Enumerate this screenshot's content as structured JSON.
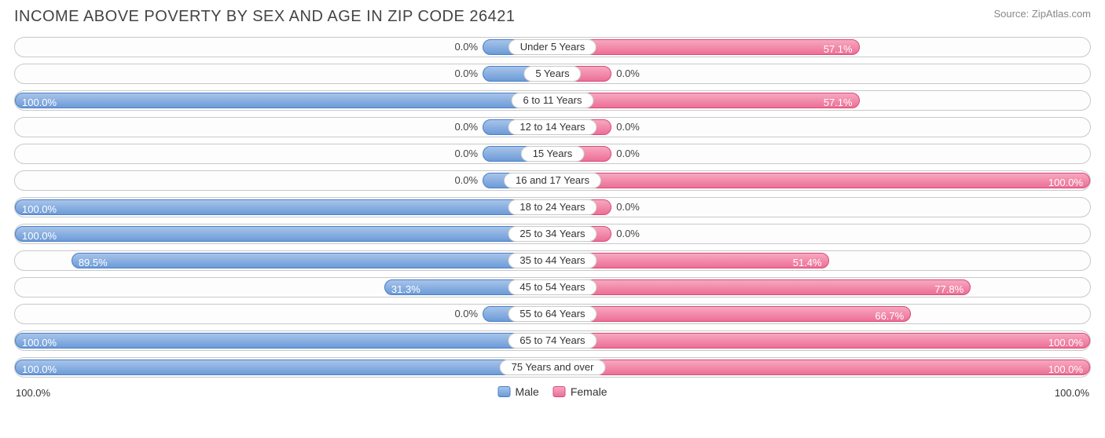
{
  "title": "INCOME ABOVE POVERTY BY SEX AND AGE IN ZIP CODE 26421",
  "source": "Source: ZipAtlas.com",
  "axis": {
    "left": "100.0%",
    "right": "100.0%"
  },
  "legend": {
    "male": "Male",
    "female": "Female"
  },
  "colors": {
    "male_fill_top": "#a7c4ea",
    "male_fill_bottom": "#6d9bd8",
    "male_border": "#4a7fc9",
    "female_fill_top": "#f7a8c0",
    "female_fill_bottom": "#ed6f97",
    "female_border": "#d94a78",
    "row_border": "#c9c9c9",
    "background": "#ffffff"
  },
  "chart": {
    "type": "diverging-bar",
    "male_min_pct": 13.0,
    "female_min_pct": 11.0,
    "label_inside_threshold": 30.0,
    "rows": [
      {
        "label": "Under 5 Years",
        "male": 0.0,
        "male_label": "0.0%",
        "female": 57.1,
        "female_label": "57.1%"
      },
      {
        "label": "5 Years",
        "male": 0.0,
        "male_label": "0.0%",
        "female": 0.0,
        "female_label": "0.0%"
      },
      {
        "label": "6 to 11 Years",
        "male": 100.0,
        "male_label": "100.0%",
        "female": 57.1,
        "female_label": "57.1%"
      },
      {
        "label": "12 to 14 Years",
        "male": 0.0,
        "male_label": "0.0%",
        "female": 0.0,
        "female_label": "0.0%"
      },
      {
        "label": "15 Years",
        "male": 0.0,
        "male_label": "0.0%",
        "female": 0.0,
        "female_label": "0.0%"
      },
      {
        "label": "16 and 17 Years",
        "male": 0.0,
        "male_label": "0.0%",
        "female": 100.0,
        "female_label": "100.0%"
      },
      {
        "label": "18 to 24 Years",
        "male": 100.0,
        "male_label": "100.0%",
        "female": 0.0,
        "female_label": "0.0%"
      },
      {
        "label": "25 to 34 Years",
        "male": 100.0,
        "male_label": "100.0%",
        "female": 0.0,
        "female_label": "0.0%"
      },
      {
        "label": "35 to 44 Years",
        "male": 89.5,
        "male_label": "89.5%",
        "female": 51.4,
        "female_label": "51.4%"
      },
      {
        "label": "45 to 54 Years",
        "male": 31.3,
        "male_label": "31.3%",
        "female": 77.8,
        "female_label": "77.8%"
      },
      {
        "label": "55 to 64 Years",
        "male": 0.0,
        "male_label": "0.0%",
        "female": 66.7,
        "female_label": "66.7%"
      },
      {
        "label": "65 to 74 Years",
        "male": 100.0,
        "male_label": "100.0%",
        "female": 100.0,
        "female_label": "100.0%"
      },
      {
        "label": "75 Years and over",
        "male": 100.0,
        "male_label": "100.0%",
        "female": 100.0,
        "female_label": "100.0%"
      }
    ]
  }
}
